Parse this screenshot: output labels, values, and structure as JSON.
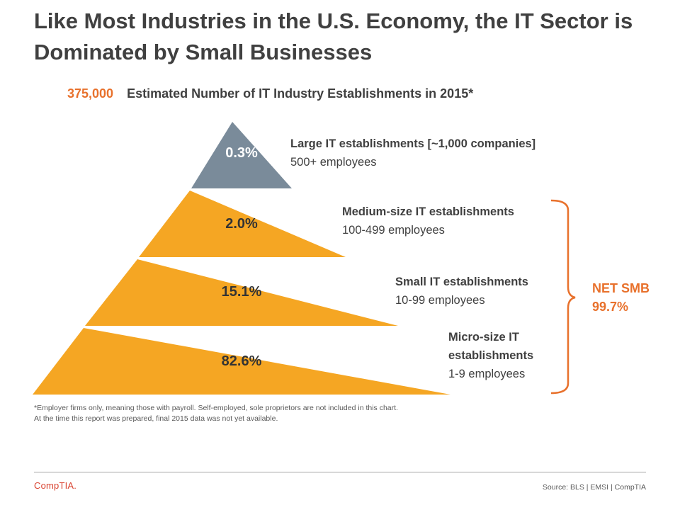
{
  "title": "Like Most Industries in the U.S. Economy, the IT Sector is Dominated by Small Businesses",
  "subtitle": {
    "total": "375,000",
    "text": "Estimated Number of IT Industry Establishments in 2015*"
  },
  "chart_data": {
    "type": "pyramid",
    "tiers": [
      {
        "percent_label": "0.3%",
        "value": 0.3,
        "name": "Large IT establishments  [~1,000 companies]",
        "detail": "500+ employees",
        "color": "#7a8b9a"
      },
      {
        "percent_label": "2.0%",
        "value": 2.0,
        "name": "Medium-size  IT establishments",
        "detail": "100-499 employees",
        "color": "#f5a623"
      },
      {
        "percent_label": "15.1%",
        "value": 15.1,
        "name": "Small  IT establishments",
        "detail": "10-99 employees",
        "color": "#f5a623"
      },
      {
        "percent_label": "82.6%",
        "value": 82.6,
        "name": "Micro-size  IT establishments",
        "detail": "1-9 employees",
        "color": "#f5a623"
      }
    ],
    "bracket": {
      "label": "NET SMB",
      "value": "99.7%",
      "color": "#e8712c"
    }
  },
  "footnote": {
    "line1": "*Employer firms only, meaning those with payroll. Self-employed, sole proprietors are not included in this chart.",
    "line2": "At the time this report was prepared, final 2015 data was not yet available."
  },
  "footer": {
    "logo": "CompTIA.",
    "source": "Source: BLS | EMSI | CompTIA"
  }
}
